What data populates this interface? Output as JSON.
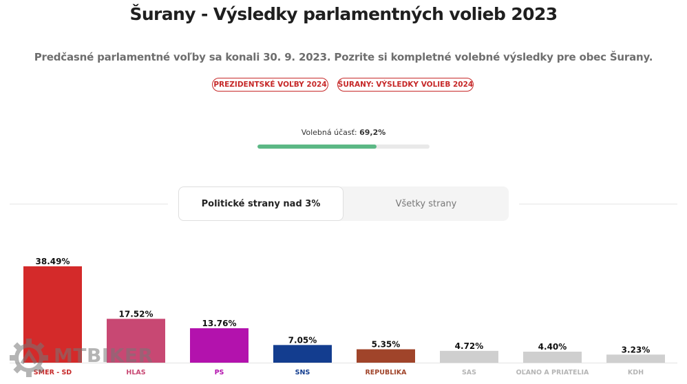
{
  "header": {
    "title": "Šurany - Výsledky parlamentných volieb 2023",
    "subtitle": "Predčasné parlamentné voľby sa konali 30. 9. 2023. Pozrite si kompletné volebné výsledky pre obec Šurany."
  },
  "links": {
    "presidential": "PREZIDENTSKÉ VOĽBY 2024",
    "results2024": "ŠURANY: VÝSLEDKY VOLIEB 2024"
  },
  "turnout": {
    "label": "Volebná účasť:",
    "value_text": "69,2%",
    "value": 69.2,
    "color": "#5cb885"
  },
  "tabs": {
    "active": "Politické strany nad 3%",
    "inactive": "Všetky strany"
  },
  "watermark": {
    "text": "MTBIKER"
  },
  "chart_data": {
    "type": "bar",
    "categories": [
      "SMER - SD",
      "HLAS",
      "PS",
      "SNS",
      "REPUBLIKA",
      "SAS",
      "OĽANO A PRIATELIA",
      "KDH"
    ],
    "values": [
      38.49,
      17.52,
      13.76,
      7.05,
      5.35,
      4.72,
      4.4,
      3.23
    ],
    "value_labels": [
      "38.49%",
      "17.52%",
      "13.76%",
      "7.05%",
      "5.35%",
      "4.72%",
      "4.40%",
      "3.23%"
    ],
    "colors": [
      "#d42a2a",
      "#c84873",
      "#b312ad",
      "#133d8f",
      "#a0442a",
      "#cfcfcf",
      "#cfcfcf",
      "#cfcfcf"
    ],
    "label_colors": [
      "#c62828",
      "#c84873",
      "#b312ad",
      "#133d8f",
      "#a0442a",
      "#b5b5b5",
      "#b5b5b5",
      "#b5b5b5"
    ],
    "ylim": [
      0,
      38.49
    ],
    "grid": false,
    "xlabel": "",
    "ylabel": ""
  }
}
